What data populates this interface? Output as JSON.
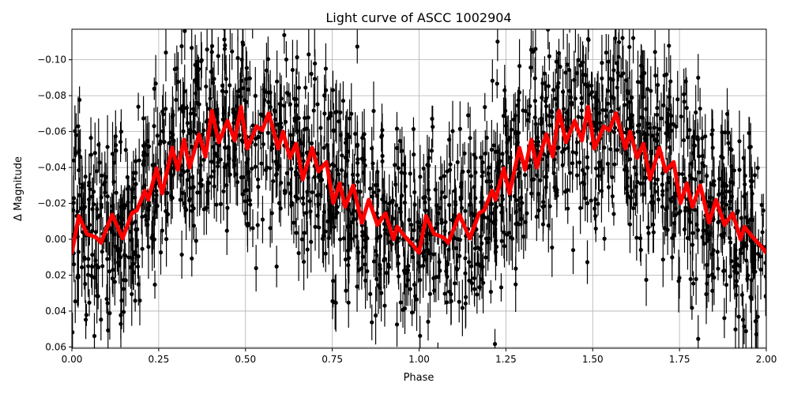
{
  "chart_data": {
    "type": "scatter",
    "title": "Light curve of ASCC 1002904",
    "xlabel": "Phase",
    "ylabel": "Δ Magnitude",
    "xlim": [
      0,
      2
    ],
    "ylim": [
      0.0607,
      -0.117
    ],
    "y_inverted": true,
    "grid": true,
    "x_ticks": [
      "0.00",
      "0.25",
      "0.50",
      "0.75",
      "1.00",
      "1.25",
      "1.50",
      "1.75",
      "2.00"
    ],
    "y_ticks": [
      "−0.10",
      "−0.08",
      "−0.06",
      "−0.04",
      "−0.02",
      "0.00",
      "0.02",
      "0.04",
      "0.06"
    ],
    "series": [
      {
        "kind": "errorbar-points",
        "color": "#000000",
        "approx_scatter_range": [
          -0.117,
          0.0607
        ]
      },
      {
        "kind": "smoothed-model-line",
        "color": "#ff0000",
        "phase_one_cycle": [
          0,
          0.02,
          0.043,
          0.07,
          0.084,
          0.116,
          0.146,
          0.173,
          0.187,
          0.21,
          0.22,
          0.244,
          0.26,
          0.289,
          0.305,
          0.323,
          0.339,
          0.366,
          0.385,
          0.403,
          0.423,
          0.448,
          0.469,
          0.487,
          0.505,
          0.532,
          0.548,
          0.567,
          0.594,
          0.608,
          0.628,
          0.646,
          0.665,
          0.692,
          0.71,
          0.733,
          0.753,
          0.771,
          0.787,
          0.81,
          0.835,
          0.855,
          0.88,
          0.903,
          0.926,
          0.937,
          0.96,
          0.981,
          1.0
        ],
        "values": [
          0.0075,
          -0.013,
          -0.003,
          -0.001,
          0.002,
          -0.0137,
          -0.0005,
          -0.0145,
          -0.016,
          -0.027,
          -0.022,
          -0.0395,
          -0.0255,
          -0.051,
          -0.0387,
          -0.0554,
          -0.04,
          -0.0585,
          -0.046,
          -0.0716,
          -0.054,
          -0.066,
          -0.055,
          -0.0738,
          -0.0505,
          -0.0629,
          -0.0607,
          -0.0703,
          -0.0505,
          -0.06,
          -0.0453,
          -0.0532,
          -0.0334,
          -0.051,
          -0.0378,
          -0.043,
          -0.0202,
          -0.0312,
          -0.018,
          -0.03,
          -0.0092,
          -0.022,
          -0.0079,
          -0.0145,
          0.0,
          -0.007,
          -0.0013,
          0.003,
          0.0075
        ],
        "repeats": 2
      }
    ]
  }
}
